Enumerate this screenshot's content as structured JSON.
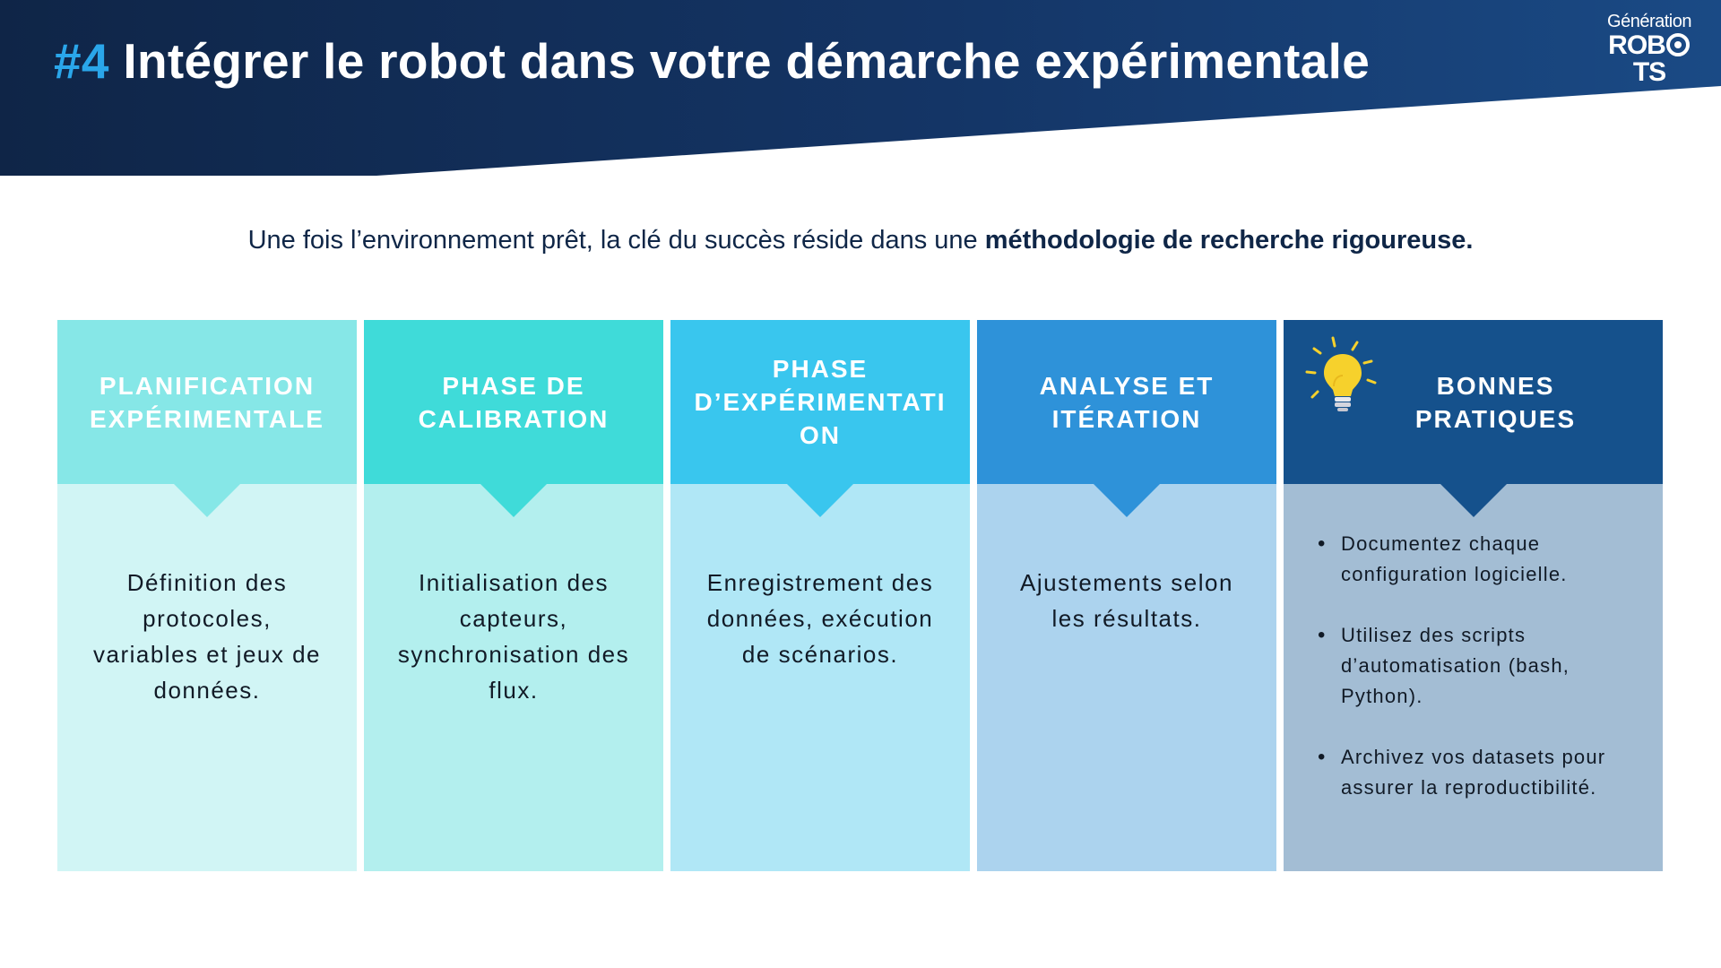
{
  "header": {
    "number": "#4",
    "title": "Intégrer le robot dans votre démarche expérimentale"
  },
  "logo": {
    "line1": "Génération",
    "line2_before": "ROB",
    "line2_after": "TS"
  },
  "intro": {
    "text": "Une fois l’environnement prêt, la clé du succès réside dans une ",
    "emphasis": "méthodologie de recherche rigoureuse."
  },
  "columns": [
    {
      "title": "PLANIFICATION EXPÉRIMENTALE",
      "text": "Définition des protocoles, variables et jeux de données.",
      "head_color": "#86e7e7",
      "body_color": "#d1f5f5"
    },
    {
      "title": "PHASE DE CALIBRATION",
      "text": "Initialisation des capteurs, synchronisation des flux.",
      "head_color": "#3fdbd9",
      "body_color": "#b3efee"
    },
    {
      "title": "PHASE D’EXPÉRIMENTATI ON",
      "text": "Enregistrement des données, exécution de scénarios.",
      "head_color": "#39c6ee",
      "body_color": "#b0e7f6"
    },
    {
      "title": "ANALYSE ET ITÉRATION",
      "text": "Ajustements selon les résultats.",
      "head_color": "#2e92d9",
      "body_color": "#acd3ee"
    },
    {
      "title": "BONNES PRATIQUES",
      "head_color": "#15518c",
      "body_color": "#a3bdd4",
      "icon": "lightbulb-icon",
      "tips": [
        "Documentez chaque configuration logicielle.",
        "Utilisez des scripts d’automatisation (bash, Python).",
        "Archivez vos datasets pour assurer la reproductibilité."
      ]
    }
  ],
  "colors": {
    "header_bg": "#0f2547",
    "accent": "#2aa6ea",
    "text_dark": "#0f2647",
    "bulb": "#f6d12c"
  }
}
